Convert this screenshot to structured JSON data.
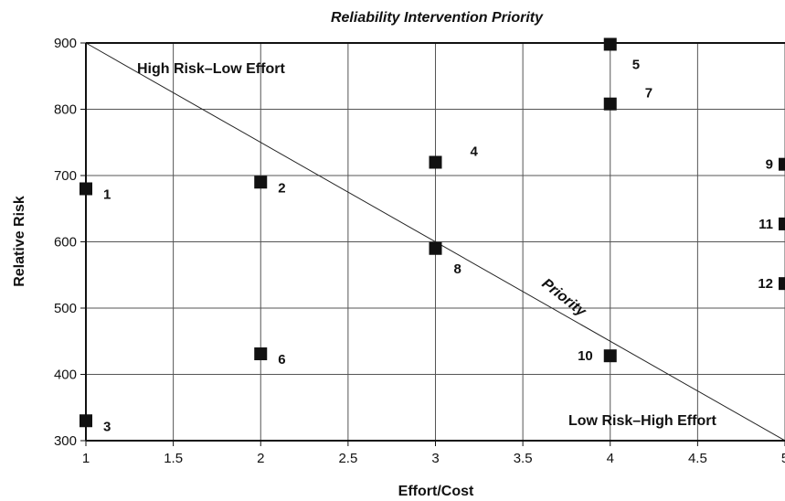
{
  "chart_data": {
    "type": "scatter",
    "title": "Reliability Intervention Priority",
    "xlabel": "Effort/Cost",
    "ylabel": "Relative Risk",
    "xlim": [
      1,
      5
    ],
    "ylim": [
      300,
      900
    ],
    "xticks": [
      "1",
      "1.5",
      "2",
      "2.5",
      "3",
      "3.5",
      "4",
      "4.5",
      "5"
    ],
    "yticks": [
      "300",
      "400",
      "500",
      "600",
      "700",
      "800",
      "900"
    ],
    "grid": true,
    "points": [
      {
        "label": "1",
        "x": 1.0,
        "y": 680
      },
      {
        "label": "2",
        "x": 2.0,
        "y": 690
      },
      {
        "label": "3",
        "x": 1.0,
        "y": 330
      },
      {
        "label": "4",
        "x": 3.0,
        "y": 720
      },
      {
        "label": "5",
        "x": 4.0,
        "y": 898
      },
      {
        "label": "6",
        "x": 2.0,
        "y": 431
      },
      {
        "label": "7",
        "x": 4.0,
        "y": 808
      },
      {
        "label": "8",
        "x": 3.0,
        "y": 590
      },
      {
        "label": "9",
        "x": 5.0,
        "y": 717
      },
      {
        "label": "10",
        "x": 4.0,
        "y": 428
      },
      {
        "label": "11",
        "x": 5.0,
        "y": 627
      },
      {
        "label": "12",
        "x": 5.0,
        "y": 537
      }
    ],
    "priority_line": {
      "label": "Priority",
      "from": [
        1,
        900
      ],
      "to": [
        5,
        300
      ]
    },
    "annotations": {
      "upper_left": "High Risk–Low Effort",
      "lower_right": "Low Risk–High Effort"
    }
  }
}
